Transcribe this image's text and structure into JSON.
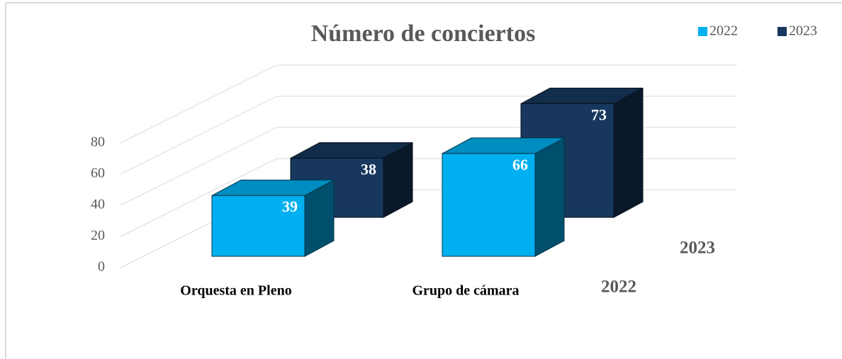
{
  "chart_data": {
    "type": "bar",
    "title": "Número de conciertos",
    "categories": [
      "Orquesta en Pleno",
      "Grupo de cámara"
    ],
    "series": [
      {
        "name": "2022",
        "color": "#00b0f0",
        "values": [
          39,
          66
        ]
      },
      {
        "name": "2023",
        "color": "#17375e",
        "values": [
          38,
          73
        ]
      }
    ],
    "ylim": [
      0,
      80
    ],
    "yticks": [
      0,
      20,
      40,
      60,
      80
    ],
    "grid": true,
    "legend": "top-right"
  }
}
